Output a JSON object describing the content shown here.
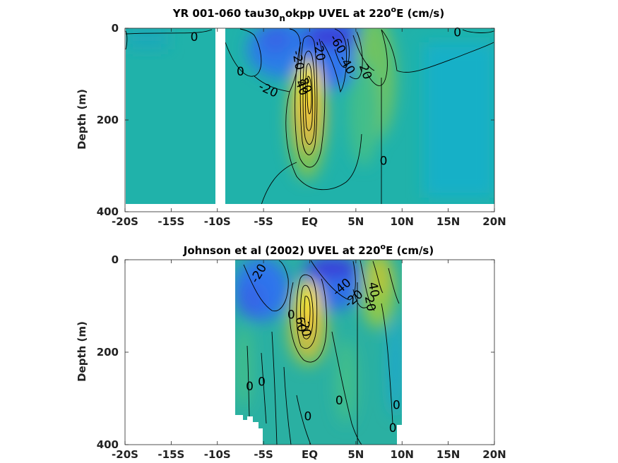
{
  "chart_data": [
    {
      "type": "heatmap",
      "title_parts": [
        "YR 001-060 tau30",
        "n",
        "okpp UVEL at 220",
        "o",
        "E (cm/s)"
      ],
      "xlabel": "",
      "ylabel": "Depth (m)",
      "xlim": [
        -20,
        20
      ],
      "ylim": [
        400,
        0
      ],
      "x_ticks": [
        -20,
        -15,
        -10,
        -5,
        0,
        5,
        10,
        15,
        20
      ],
      "x_tick_labels": [
        "-20S",
        "-15S",
        "-10S",
        "-5S",
        "EQ",
        "5N",
        "10N",
        "15N",
        "20N"
      ],
      "y_ticks": [
        0,
        200,
        400
      ],
      "y_tick_labels": [
        "0",
        "200",
        "400"
      ],
      "colorscale": [
        "#3b33d6",
        "#2f6ff0",
        "#1aa7cf",
        "#20b2aa",
        "#43be8a",
        "#8fc84b",
        "#d2ba35",
        "#f5d73a",
        "#f9fb0e"
      ],
      "color_range": [
        -80,
        100
      ],
      "data_mask": [
        [
          -20,
          -9.9
        ],
        [
          -9,
          20
        ]
      ],
      "data_depth_bottom": 383,
      "features": [
        {
          "kind": "eastward_jet",
          "center_lat": 0,
          "center_depth": 120,
          "peak": 100
        },
        {
          "kind": "westward_flow",
          "center_lat": 1,
          "center_depth": 10,
          "peak": -70
        },
        {
          "kind": "westward_flow",
          "center_lat": -3,
          "center_depth": 30,
          "peak": -35
        },
        {
          "kind": "eastward_flow",
          "center_lat": 6,
          "center_depth": 80,
          "peak": 30
        }
      ],
      "contour_labels": [
        {
          "text": "0",
          "lat": -12.5,
          "depth": 20,
          "angle": 0
        },
        {
          "text": "0",
          "lat": -7.5,
          "depth": 95,
          "angle": 0
        },
        {
          "text": "-20",
          "lat": -4.5,
          "depth": 135,
          "angle": 25
        },
        {
          "text": "-20",
          "lat": -1.3,
          "depth": 70,
          "angle": 80
        },
        {
          "text": "-20",
          "lat": 1.0,
          "depth": 50,
          "angle": 80
        },
        {
          "text": "-60",
          "lat": 3.0,
          "depth": 35,
          "angle": 60
        },
        {
          "text": "-40",
          "lat": 4.0,
          "depth": 80,
          "angle": 60
        },
        {
          "text": "20",
          "lat": 6.0,
          "depth": 95,
          "angle": 70
        },
        {
          "text": "0",
          "lat": 16.0,
          "depth": 10,
          "angle": 0
        },
        {
          "text": "0",
          "lat": 8.0,
          "depth": 290,
          "angle": 0
        },
        {
          "text": "80",
          "lat": -0.5,
          "depth": 125,
          "angle": 70
        },
        {
          "text": "40",
          "lat": -0.9,
          "depth": 130,
          "angle": 70
        }
      ]
    },
    {
      "type": "heatmap",
      "title_parts": [
        "Johnson et al (2002) UVEL at 220",
        "o",
        "E (cm/s)"
      ],
      "xlabel": "",
      "ylabel": "Depth (m)",
      "xlim": [
        -20,
        20
      ],
      "ylim": [
        400,
        0
      ],
      "x_ticks": [
        -20,
        -15,
        -10,
        -5,
        0,
        5,
        10,
        15,
        20
      ],
      "x_tick_labels": [
        "-20S",
        "-15S",
        "-10S",
        "-5S",
        "EQ",
        "5N",
        "10N",
        "15N",
        "20N"
      ],
      "y_ticks": [
        0,
        200,
        400
      ],
      "y_tick_labels": [
        "0",
        "200",
        "400"
      ],
      "colorscale": [
        "#3b33d6",
        "#2f6ff0",
        "#1aa7cf",
        "#20b2aa",
        "#43be8a",
        "#8fc84b",
        "#d2ba35",
        "#f5d73a",
        "#f9fb0e"
      ],
      "color_range": [
        -80,
        100
      ],
      "data_mask": [
        [
          -8,
          10
        ]
      ],
      "data_depth_bottom": 400,
      "features": [
        {
          "kind": "eastward_jet",
          "center_lat": 0,
          "center_depth": 110,
          "peak": 90
        },
        {
          "kind": "westward_flow",
          "center_lat": 2.5,
          "center_depth": 20,
          "peak": -50
        },
        {
          "kind": "westward_flow",
          "center_lat": -4,
          "center_depth": 40,
          "peak": -25
        },
        {
          "kind": "eastward_flow",
          "center_lat": 7,
          "center_depth": 50,
          "peak": 35
        }
      ],
      "contour_labels": [
        {
          "text": "-20",
          "lat": -5.5,
          "depth": 30,
          "angle": -60
        },
        {
          "text": "-40",
          "lat": 3.5,
          "depth": 60,
          "angle": -40
        },
        {
          "text": "-20",
          "lat": 4.8,
          "depth": 85,
          "angle": -40
        },
        {
          "text": "40",
          "lat": 6.9,
          "depth": 65,
          "angle": 80
        },
        {
          "text": "20",
          "lat": 6.5,
          "depth": 95,
          "angle": 80
        },
        {
          "text": "0",
          "lat": -2.0,
          "depth": 120,
          "angle": 0
        },
        {
          "text": "60",
          "lat": -1.0,
          "depth": 140,
          "angle": 80
        },
        {
          "text": "20",
          "lat": -0.5,
          "depth": 150,
          "angle": 80
        },
        {
          "text": "0",
          "lat": -6.5,
          "depth": 275,
          "angle": 0
        },
        {
          "text": "0",
          "lat": -5.2,
          "depth": 265,
          "angle": 0
        },
        {
          "text": "0",
          "lat": -0.2,
          "depth": 340,
          "angle": 0
        },
        {
          "text": "0",
          "lat": 3.2,
          "depth": 305,
          "angle": 0
        },
        {
          "text": "0",
          "lat": 9.4,
          "depth": 315,
          "angle": 0
        },
        {
          "text": "0",
          "lat": 9.0,
          "depth": 365,
          "angle": 0
        }
      ]
    }
  ]
}
